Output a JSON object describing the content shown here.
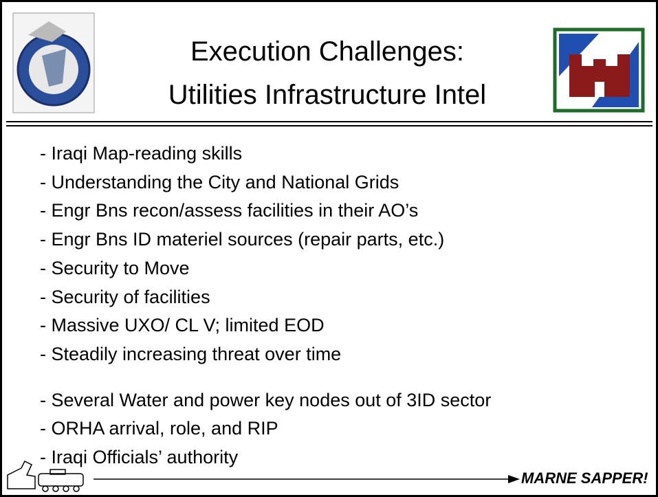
{
  "header": {
    "title_lines": [
      "Execution Challenges:",
      "Utilities Infrastructure Intel"
    ]
  },
  "bullet_groups": [
    [
      "- Iraqi Map-reading skills",
      "- Understanding the City and National Grids",
      "- Engr Bns recon/assess facilities in their AO’s",
      "- Engr Bns ID materiel sources (repair parts, etc.)",
      "- Security to Move",
      "- Security of facilities",
      "- Massive UXO/ CL V; limited EOD",
      "- Steadily increasing threat over time"
    ],
    [
      "- Several Water and power key nodes out of 3ID sector",
      "- ORHA arrival, role, and RIP",
      "- Iraqi Officials’ authority"
    ]
  ],
  "footer": {
    "motto": "MARNE SAPPER!"
  }
}
